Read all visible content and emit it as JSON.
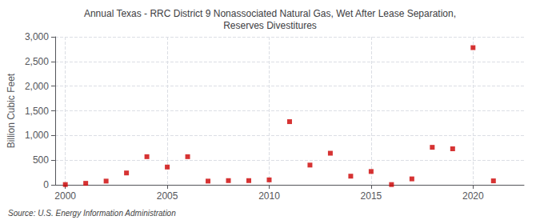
{
  "chart_data": {
    "type": "scatter",
    "title": "Annual Texas - RRC District 9 Nonassociated Natural Gas, Wet After Lease Separation,\nReserves Divestitures",
    "ylabel": "Billion Cubic Feet",
    "annotations": [
      "Source: U.S. Energy Information Administration"
    ],
    "x": [
      2000,
      2001,
      2002,
      2003,
      2004,
      2005,
      2006,
      2007,
      2008,
      2009,
      2010,
      2011,
      2012,
      2013,
      2014,
      2015,
      2016,
      2017,
      2018,
      2019,
      2020,
      2021
    ],
    "values": [
      5,
      30,
      75,
      240,
      570,
      360,
      570,
      75,
      85,
      85,
      100,
      1280,
      400,
      640,
      175,
      270,
      5,
      120,
      760,
      730,
      2780,
      80
    ],
    "color": "#cc0000",
    "marker": "square",
    "xlim": [
      1999.5,
      2022.5
    ],
    "xticks": [
      2000,
      2005,
      2010,
      2015,
      2020
    ],
    "ylim": [
      0,
      3000
    ],
    "yticks": [
      0,
      500,
      {
        "value": 1000,
        "label": "1,000"
      },
      {
        "value": 1500,
        "label": "1,500"
      },
      {
        "value": 2000,
        "label": "2,000"
      },
      {
        "value": 2500,
        "label": "2,500"
      },
      {
        "value": 3000,
        "label": "3,000"
      }
    ],
    "grid": true
  }
}
